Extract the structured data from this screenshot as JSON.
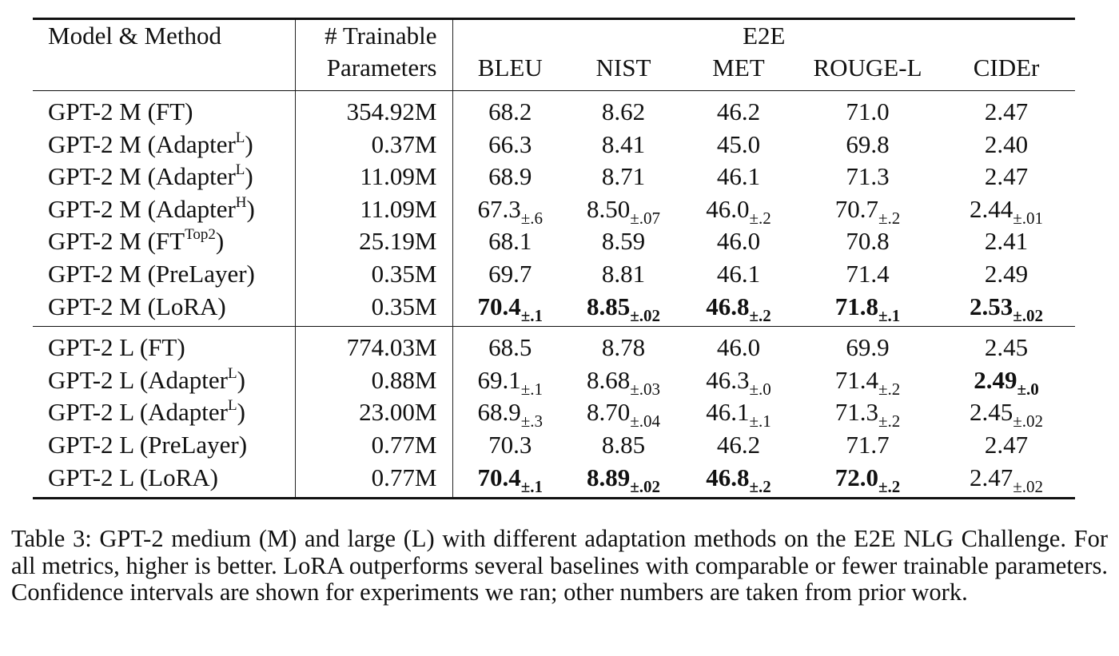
{
  "header": {
    "model_label": "Model & Method",
    "params_label_line1": "# Trainable",
    "params_label_line2": "Parameters",
    "group_label": "E2E",
    "metrics": [
      "BLEU",
      "NIST",
      "MET",
      "ROUGE-L",
      "CIDEr"
    ]
  },
  "groups": [
    {
      "rows": [
        {
          "model": "GPT-2 M (FT)",
          "sup": "",
          "suffix": "",
          "params": "354.92M",
          "cells": [
            {
              "v": "68.2",
              "ci": "",
              "b": false
            },
            {
              "v": "8.62",
              "ci": "",
              "b": false
            },
            {
              "v": "46.2",
              "ci": "",
              "b": false
            },
            {
              "v": "71.0",
              "ci": "",
              "b": false
            },
            {
              "v": "2.47",
              "ci": "",
              "b": false
            }
          ]
        },
        {
          "model": "GPT-2 M (Adapter",
          "sup": "L",
          "suffix": ")",
          "params": "0.37M",
          "cells": [
            {
              "v": "66.3",
              "ci": "",
              "b": false
            },
            {
              "v": "8.41",
              "ci": "",
              "b": false
            },
            {
              "v": "45.0",
              "ci": "",
              "b": false
            },
            {
              "v": "69.8",
              "ci": "",
              "b": false
            },
            {
              "v": "2.40",
              "ci": "",
              "b": false
            }
          ]
        },
        {
          "model": "GPT-2 M (Adapter",
          "sup": "L",
          "suffix": ")",
          "params": "11.09M",
          "cells": [
            {
              "v": "68.9",
              "ci": "",
              "b": false
            },
            {
              "v": "8.71",
              "ci": "",
              "b": false
            },
            {
              "v": "46.1",
              "ci": "",
              "b": false
            },
            {
              "v": "71.3",
              "ci": "",
              "b": false
            },
            {
              "v": "2.47",
              "ci": "",
              "b": false
            }
          ]
        },
        {
          "model": "GPT-2 M (Adapter",
          "sup": "H",
          "suffix": ")",
          "params": "11.09M",
          "cells": [
            {
              "v": "67.3",
              "ci": "±.6",
              "b": false
            },
            {
              "v": "8.50",
              "ci": "±.07",
              "b": false
            },
            {
              "v": "46.0",
              "ci": "±.2",
              "b": false
            },
            {
              "v": "70.7",
              "ci": "±.2",
              "b": false
            },
            {
              "v": "2.44",
              "ci": "±.01",
              "b": false
            }
          ]
        },
        {
          "model": "GPT-2 M (FT",
          "sup": "Top2",
          "suffix": ")",
          "params": "25.19M",
          "cells": [
            {
              "v": "68.1",
              "ci": "",
              "b": false
            },
            {
              "v": "8.59",
              "ci": "",
              "b": false
            },
            {
              "v": "46.0",
              "ci": "",
              "b": false
            },
            {
              "v": "70.8",
              "ci": "",
              "b": false
            },
            {
              "v": "2.41",
              "ci": "",
              "b": false
            }
          ]
        },
        {
          "model": "GPT-2 M (PreLayer)",
          "sup": "",
          "suffix": "",
          "params": "0.35M",
          "cells": [
            {
              "v": "69.7",
              "ci": "",
              "b": false
            },
            {
              "v": "8.81",
              "ci": "",
              "b": false
            },
            {
              "v": "46.1",
              "ci": "",
              "b": false
            },
            {
              "v": "71.4",
              "ci": "",
              "b": false
            },
            {
              "v": "2.49",
              "ci": "",
              "b": false
            }
          ]
        },
        {
          "model": "GPT-2 M (LoRA)",
          "sup": "",
          "suffix": "",
          "params": "0.35M",
          "cells": [
            {
              "v": "70.4",
              "ci": "±.1",
              "b": true
            },
            {
              "v": "8.85",
              "ci": "±.02",
              "b": true
            },
            {
              "v": "46.8",
              "ci": "±.2",
              "b": true
            },
            {
              "v": "71.8",
              "ci": "±.1",
              "b": true
            },
            {
              "v": "2.53",
              "ci": "±.02",
              "b": true
            }
          ]
        }
      ]
    },
    {
      "rows": [
        {
          "model": "GPT-2 L (FT)",
          "sup": "",
          "suffix": "",
          "params": "774.03M",
          "cells": [
            {
              "v": "68.5",
              "ci": "",
              "b": false
            },
            {
              "v": "8.78",
              "ci": "",
              "b": false
            },
            {
              "v": "46.0",
              "ci": "",
              "b": false
            },
            {
              "v": "69.9",
              "ci": "",
              "b": false
            },
            {
              "v": "2.45",
              "ci": "",
              "b": false
            }
          ]
        },
        {
          "model": "GPT-2 L (Adapter",
          "sup": "L",
          "suffix": ")",
          "params": "0.88M",
          "cells": [
            {
              "v": "69.1",
              "ci": "±.1",
              "b": false
            },
            {
              "v": "8.68",
              "ci": "±.03",
              "b": false
            },
            {
              "v": "46.3",
              "ci": "±.0",
              "b": false
            },
            {
              "v": "71.4",
              "ci": "±.2",
              "b": false
            },
            {
              "v": "2.49",
              "ci": "±.0",
              "b": true
            }
          ]
        },
        {
          "model": "GPT-2 L (Adapter",
          "sup": "L",
          "suffix": ")",
          "params": "23.00M",
          "cells": [
            {
              "v": "68.9",
              "ci": "±.3",
              "b": false
            },
            {
              "v": "8.70",
              "ci": "±.04",
              "b": false
            },
            {
              "v": "46.1",
              "ci": "±.1",
              "b": false
            },
            {
              "v": "71.3",
              "ci": "±.2",
              "b": false
            },
            {
              "v": "2.45",
              "ci": "±.02",
              "b": false
            }
          ]
        },
        {
          "model": "GPT-2 L (PreLayer)",
          "sup": "",
          "suffix": "",
          "params": "0.77M",
          "cells": [
            {
              "v": "70.3",
              "ci": "",
              "b": false
            },
            {
              "v": "8.85",
              "ci": "",
              "b": false
            },
            {
              "v": "46.2",
              "ci": "",
              "b": false
            },
            {
              "v": "71.7",
              "ci": "",
              "b": false
            },
            {
              "v": "2.47",
              "ci": "",
              "b": false
            }
          ]
        },
        {
          "model": "GPT-2 L (LoRA)",
          "sup": "",
          "suffix": "",
          "params": "0.77M",
          "cells": [
            {
              "v": "70.4",
              "ci": "±.1",
              "b": true
            },
            {
              "v": "8.89",
              "ci": "±.02",
              "b": true
            },
            {
              "v": "46.8",
              "ci": "±.2",
              "b": true
            },
            {
              "v": "72.0",
              "ci": "±.2",
              "b": true
            },
            {
              "v": "2.47",
              "ci": "±.02",
              "b": false
            }
          ]
        }
      ]
    }
  ],
  "caption": "Table 3: GPT-2 medium (M) and large (L) with different adaptation methods on the E2E NLG Challenge. For all metrics, higher is better. LoRA outperforms several baselines with comparable or fewer trainable parameters. Confidence intervals are shown for experiments we ran; other numbers are taken from prior work."
}
